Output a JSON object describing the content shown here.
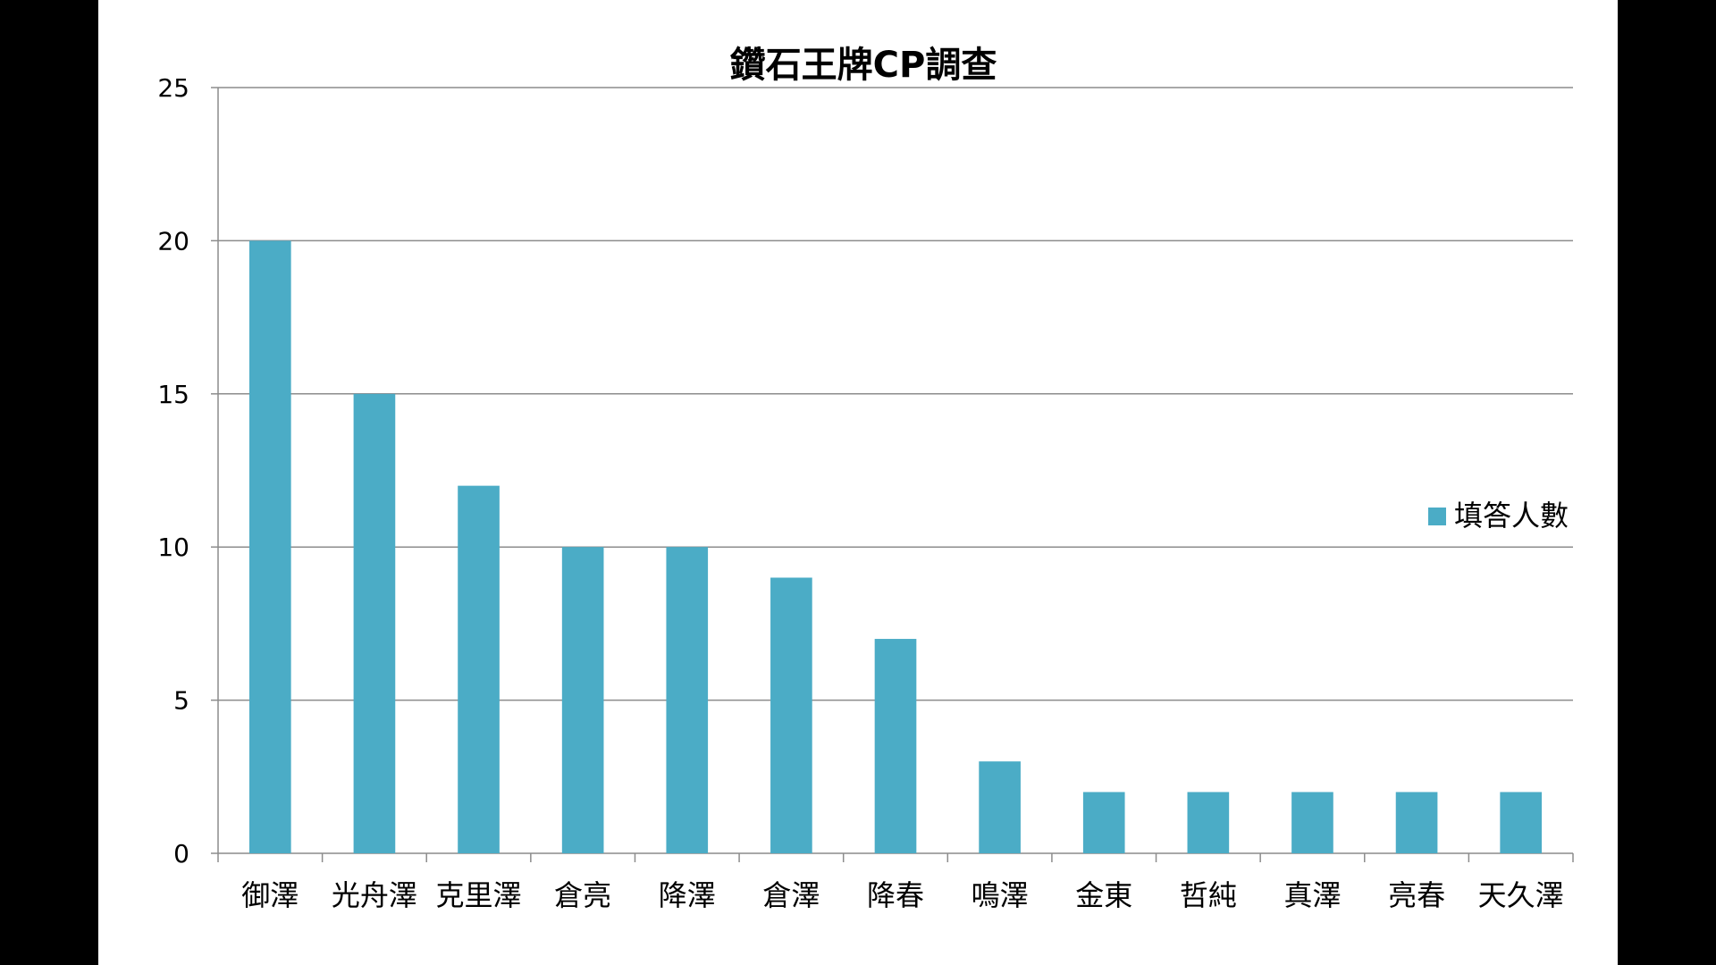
{
  "chart_data": {
    "type": "bar",
    "title": "鑽石王牌CP調查",
    "categories": [
      "御澤",
      "光舟澤",
      "克里澤",
      "倉亮",
      "降澤",
      "倉澤",
      "降春",
      "鳴澤",
      "金東",
      "哲純",
      "真澤",
      "亮春",
      "天久澤"
    ],
    "series": [
      {
        "name": "填答人數",
        "color": "#4bacc6",
        "values": [
          20,
          15,
          12,
          10,
          10,
          9,
          7,
          3,
          2,
          2,
          2,
          2,
          2
        ]
      }
    ],
    "ylim": [
      0,
      25
    ],
    "yticks": [
      0,
      5,
      10,
      15,
      20,
      25
    ],
    "grid": true,
    "legend_position": "right"
  }
}
